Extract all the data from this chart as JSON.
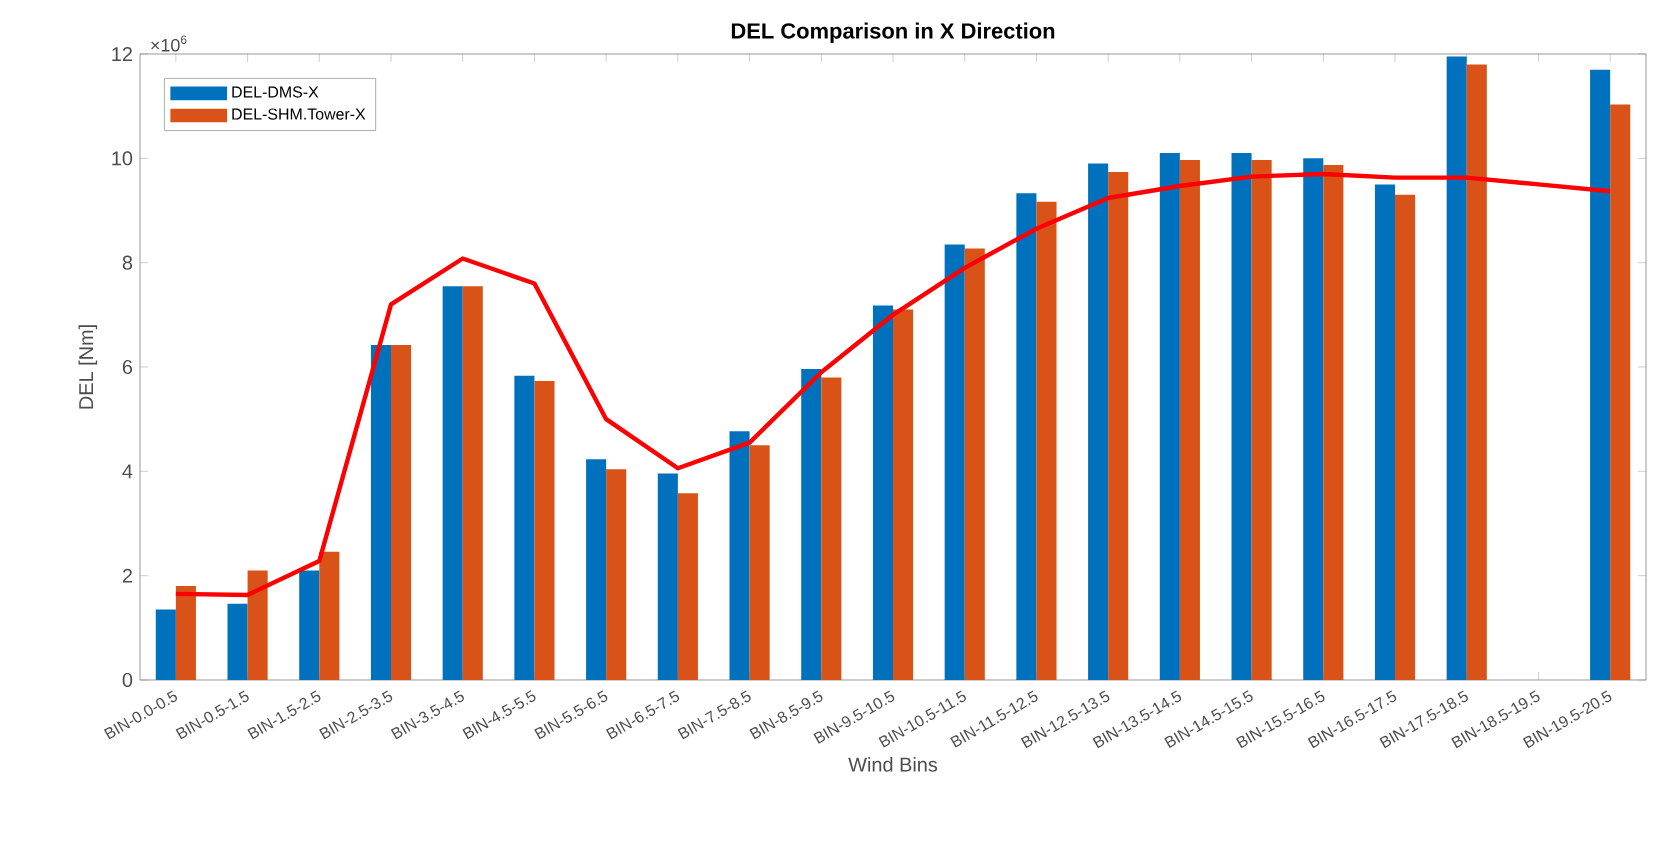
{
  "chart_data": {
    "type": "bar",
    "title": "DEL Comparison in X Direction",
    "xlabel": "Wind Bins",
    "ylabel": "DEL [Nm]",
    "annotations": [
      "×10$^{6}$"
    ],
    "categories": [
      "BIN-0.0-0.5",
      "BIN-0.5-1.5",
      "BIN-1.5-2.5",
      "BIN-2.5-3.5",
      "BIN-3.5-4.5",
      "BIN-4.5-5.5",
      "BIN-5.5-6.5",
      "BIN-6.5-7.5",
      "BIN-7.5-8.5",
      "BIN-8.5-9.5",
      "BIN-9.5-10.5",
      "BIN-10.5-11.5",
      "BIN-11.5-12.5",
      "BIN-12.5-13.5",
      "BIN-13.5-14.5",
      "BIN-14.5-15.5",
      "BIN-15.5-16.5",
      "BIN-16.5-17.5",
      "BIN-17.5-18.5",
      "BIN-18.5-19.5",
      "BIN-19.5-20.5"
    ],
    "series": [
      {
        "name": "DEL-DMS-X",
        "color": "#0072bd",
        "values": [
          1.35,
          1.46,
          2.1,
          6.42,
          7.55,
          5.83,
          4.23,
          3.96,
          4.77,
          5.96,
          7.18,
          8.35,
          9.33,
          9.9,
          10.1,
          10.1,
          10.0,
          9.5,
          11.95,
          null,
          11.7
        ]
      },
      {
        "name": "DEL-SHM.Tower-X",
        "color": "#d95319",
        "values": [
          1.8,
          2.1,
          2.46,
          6.42,
          7.55,
          5.73,
          4.04,
          3.58,
          4.5,
          5.8,
          7.1,
          8.27,
          9.17,
          9.74,
          9.97,
          9.97,
          9.87,
          9.3,
          11.8,
          null,
          11.03
        ]
      },
      {
        "type": "line",
        "color": "#ff0000",
        "values": [
          1.65,
          1.63,
          2.28,
          7.2,
          8.08,
          7.6,
          5.0,
          4.06,
          4.55,
          5.9,
          7.0,
          7.9,
          8.65,
          9.24,
          9.47,
          9.65,
          9.7,
          9.63,
          9.63,
          9.5,
          9.37
        ]
      }
    ],
    "ylim": [
      0,
      12
    ],
    "yticks": [
      0,
      2,
      4,
      6,
      8,
      10,
      12
    ],
    "grid": false,
    "legend": "top left"
  }
}
